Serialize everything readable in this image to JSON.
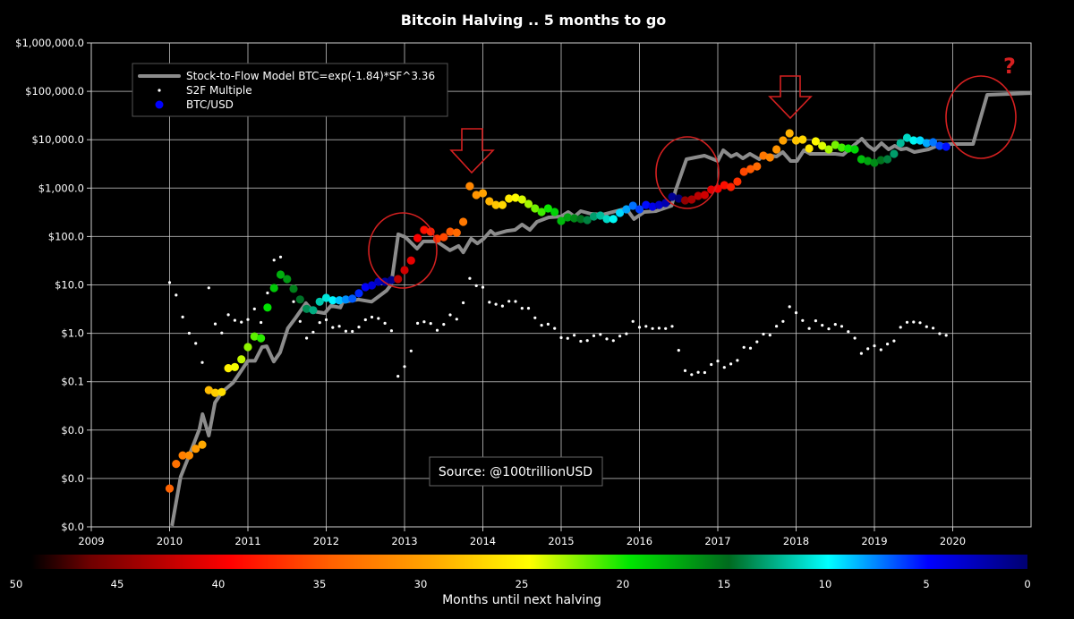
{
  "chart_data": {
    "type": "scatter",
    "title": "Bitcoin Halving .. 5 months to go",
    "x_ticks": [
      "2009",
      "2010",
      "2011",
      "2012",
      "2013",
      "2014",
      "2015",
      "2016",
      "2017",
      "2018",
      "2019",
      "2020"
    ],
    "xlim": [
      2009,
      2021
    ],
    "y_scale": "log",
    "ylim": [
      0.0001,
      1000000
    ],
    "y_ticks": [
      {
        "value": 1000000,
        "label": "$1,000,000.0"
      },
      {
        "value": 100000,
        "label": "$100,000.0"
      },
      {
        "value": 10000,
        "label": "$10,000.0"
      },
      {
        "value": 1000,
        "label": "$1,000.0"
      },
      {
        "value": 100,
        "label": "$100.0"
      },
      {
        "value": 10,
        "label": "$10.0"
      },
      {
        "value": 1,
        "label": "$1.0"
      },
      {
        "value": 0.1,
        "label": "$0.1"
      },
      {
        "value": 0.01,
        "label": "$0.0"
      },
      {
        "value": 0.001,
        "label": "$0.0"
      },
      {
        "value": 0.0001,
        "label": "$0.0"
      }
    ],
    "grid": true,
    "legend": {
      "placement": "top-left",
      "entries": [
        {
          "label": "Stock-to-Flow Model BTC=exp(-1.84)*SF^3.36",
          "color": "#8c8c8c",
          "marker": "line"
        },
        {
          "label": "S2F Multiple",
          "color": "#ffffff",
          "marker": "small-dot"
        },
        {
          "label": "BTC/USD",
          "color": "#0000ff",
          "marker": "dot"
        }
      ]
    },
    "halvings": [
      2012.9,
      2016.52,
      2020.36
    ],
    "series": [
      {
        "name": "Stock-to-Flow Model BTC=exp(-1.84)*SF^3.36",
        "type": "line",
        "color": "#8c8c8c",
        "points": [
          [
            2010.03,
            0.000105
          ],
          [
            2010.14,
            0.00108
          ],
          [
            2010.27,
            0.0036
          ],
          [
            2010.38,
            0.0104
          ],
          [
            2010.42,
            0.0213
          ],
          [
            2010.5,
            0.0077
          ],
          [
            2010.58,
            0.037
          ],
          [
            2010.67,
            0.061
          ],
          [
            2010.81,
            0.095
          ],
          [
            2010.91,
            0.164
          ],
          [
            2011.0,
            0.27
          ],
          [
            2011.09,
            0.27
          ],
          [
            2011.18,
            0.52
          ],
          [
            2011.24,
            0.54
          ],
          [
            2011.33,
            0.26
          ],
          [
            2011.41,
            0.4
          ],
          [
            2011.51,
            1.27
          ],
          [
            2011.61,
            2.1
          ],
          [
            2011.74,
            4.2
          ],
          [
            2011.83,
            2.85
          ],
          [
            2011.98,
            2.6
          ],
          [
            2012.06,
            3.7
          ],
          [
            2012.18,
            3.4
          ],
          [
            2012.21,
            4.4
          ],
          [
            2012.41,
            5.0
          ],
          [
            2012.58,
            4.5
          ],
          [
            2012.77,
            7.6
          ],
          [
            2012.83,
            10.2
          ],
          [
            2012.92,
            111
          ],
          [
            2013.01,
            97
          ],
          [
            2013.16,
            56
          ],
          [
            2013.24,
            79
          ],
          [
            2013.35,
            79
          ],
          [
            2013.41,
            79
          ],
          [
            2013.58,
            52
          ],
          [
            2013.69,
            64
          ],
          [
            2013.75,
            47
          ],
          [
            2013.85,
            90
          ],
          [
            2013.93,
            72
          ],
          [
            2014.01,
            90
          ],
          [
            2014.1,
            131
          ],
          [
            2014.15,
            111
          ],
          [
            2014.31,
            131
          ],
          [
            2014.41,
            137
          ],
          [
            2014.5,
            177
          ],
          [
            2014.6,
            137
          ],
          [
            2014.69,
            201
          ],
          [
            2014.84,
            249
          ],
          [
            2015.0,
            259
          ],
          [
            2015.09,
            321
          ],
          [
            2015.17,
            259
          ],
          [
            2015.25,
            335
          ],
          [
            2015.38,
            295
          ],
          [
            2015.53,
            284
          ],
          [
            2015.7,
            335
          ],
          [
            2015.83,
            380
          ],
          [
            2015.93,
            229
          ],
          [
            2016.06,
            321
          ],
          [
            2016.21,
            335
          ],
          [
            2016.41,
            432
          ],
          [
            2016.46,
            891
          ],
          [
            2016.6,
            3950
          ],
          [
            2016.83,
            4690
          ],
          [
            2017.0,
            3630
          ],
          [
            2017.07,
            6050
          ],
          [
            2017.17,
            4500
          ],
          [
            2017.24,
            5100
          ],
          [
            2017.32,
            4130
          ],
          [
            2017.41,
            5100
          ],
          [
            2017.53,
            3950
          ],
          [
            2017.58,
            4890
          ],
          [
            2017.75,
            4500
          ],
          [
            2017.83,
            5560
          ],
          [
            2017.93,
            3630
          ],
          [
            2018.01,
            3630
          ],
          [
            2018.1,
            6050
          ],
          [
            2018.18,
            5100
          ],
          [
            2018.35,
            5100
          ],
          [
            2018.5,
            5100
          ],
          [
            2018.6,
            4890
          ],
          [
            2018.73,
            7480
          ],
          [
            2018.84,
            10500
          ],
          [
            2018.92,
            7480
          ],
          [
            2019.0,
            6050
          ],
          [
            2019.09,
            8510
          ],
          [
            2019.18,
            6310
          ],
          [
            2019.26,
            7480
          ],
          [
            2019.34,
            6310
          ],
          [
            2019.41,
            6590
          ],
          [
            2019.51,
            5560
          ],
          [
            2019.69,
            6310
          ],
          [
            2019.8,
            7480
          ],
          [
            2019.98,
            8150
          ],
          [
            2020.26,
            8150
          ],
          [
            2020.44,
            84700
          ],
          [
            2021.01,
            92300
          ]
        ]
      },
      {
        "name": "BTC/USD",
        "type": "scatter",
        "color_by": "Months until next halving",
        "points": [
          [
            "2010-01",
            0.00062
          ],
          [
            "2010-02",
            0.002
          ],
          [
            "2010-03",
            0.003
          ],
          [
            "2010-04",
            0.003
          ],
          [
            "2010-05",
            0.0041
          ],
          [
            "2010-06",
            0.005
          ],
          [
            "2010-07",
            0.067
          ],
          [
            "2010-08",
            0.059
          ],
          [
            "2010-09",
            0.061
          ],
          [
            "2010-10",
            0.19
          ],
          [
            "2010-11",
            0.2
          ],
          [
            "2010-12",
            0.29
          ],
          [
            "2011-01",
            0.52
          ],
          [
            "2011-02",
            0.86
          ],
          [
            "2011-03",
            0.79
          ],
          [
            "2011-04",
            3.4
          ],
          [
            "2011-05",
            8.6
          ],
          [
            "2011-06",
            16.3
          ],
          [
            "2011-07",
            13.2
          ],
          [
            "2011-08",
            8.3
          ],
          [
            "2011-09",
            5.0
          ],
          [
            "2011-10",
            3.2
          ],
          [
            "2011-11",
            3.0
          ],
          [
            "2011-12",
            4.5
          ],
          [
            "2012-01",
            5.4
          ],
          [
            "2012-02",
            4.8
          ],
          [
            "2012-03",
            4.8
          ],
          [
            "2012-04",
            5.0
          ],
          [
            "2012-05",
            5.2
          ],
          [
            "2012-06",
            6.7
          ],
          [
            "2012-07",
            9.0
          ],
          [
            "2012-08",
            9.8
          ],
          [
            "2012-09",
            11.6
          ],
          [
            "2012-10",
            11.6
          ],
          [
            "2012-11",
            12.6
          ],
          [
            "2012-12",
            13.2
          ],
          [
            "2013-01",
            20.2
          ],
          [
            "2013-02",
            32
          ],
          [
            "2013-03",
            93
          ],
          [
            "2013-04",
            137
          ],
          [
            "2013-05",
            126
          ],
          [
            "2013-06",
            90
          ],
          [
            "2013-07",
            97
          ],
          [
            "2013-08",
            126
          ],
          [
            "2013-09",
            120
          ],
          [
            "2013-10",
            201
          ],
          [
            "2013-11",
            1100
          ],
          [
            "2013-12",
            720
          ],
          [
            "2014-01",
            785
          ],
          [
            "2014-02",
            535
          ],
          [
            "2014-03",
            450
          ],
          [
            "2014-04",
            450
          ],
          [
            "2014-05",
            608
          ],
          [
            "2014-06",
            634
          ],
          [
            "2014-07",
            582
          ],
          [
            "2014-08",
            471
          ],
          [
            "2014-09",
            380
          ],
          [
            "2014-10",
            321
          ],
          [
            "2014-11",
            380
          ],
          [
            "2014-12",
            321
          ],
          [
            "2015-01",
            210
          ],
          [
            "2015-02",
            249
          ],
          [
            "2015-03",
            238
          ],
          [
            "2015-04",
            229
          ],
          [
            "2015-05",
            219
          ],
          [
            "2015-06",
            259
          ],
          [
            "2015-07",
            271
          ],
          [
            "2015-08",
            229
          ],
          [
            "2015-09",
            229
          ],
          [
            "2015-10",
            308
          ],
          [
            "2015-11",
            365
          ],
          [
            "2015-12",
            432
          ],
          [
            "2016-01",
            365
          ],
          [
            "2016-02",
            450
          ],
          [
            "2016-03",
            414
          ],
          [
            "2016-04",
            450
          ],
          [
            "2016-05",
            491
          ],
          [
            "2016-06",
            662
          ],
          [
            "2016-07",
            608
          ],
          [
            "2016-08",
            558
          ],
          [
            "2016-09",
            582
          ],
          [
            "2016-10",
            690
          ],
          [
            "2016-11",
            720
          ],
          [
            "2016-12",
            931
          ],
          [
            "2017-01",
            970
          ],
          [
            "2017-02",
            1150
          ],
          [
            "2017-03",
            1057
          ],
          [
            "2017-04",
            1365
          ],
          [
            "2017-05",
            2180
          ],
          [
            "2017-06",
            2480
          ],
          [
            "2017-07",
            2810
          ],
          [
            "2017-08",
            4690
          ],
          [
            "2017-09",
            4300
          ],
          [
            "2017-10",
            6310
          ],
          [
            "2017-11",
            9660
          ],
          [
            "2017-12",
            13600
          ],
          [
            "2018-01",
            9660
          ],
          [
            "2018-02",
            10100
          ],
          [
            "2018-03",
            6590
          ],
          [
            "2018-04",
            9270
          ],
          [
            "2018-05",
            7480
          ],
          [
            "2018-06",
            6310
          ],
          [
            "2018-07",
            7820
          ],
          [
            "2018-08",
            6870
          ],
          [
            "2018-09",
            6590
          ],
          [
            "2018-10",
            6310
          ],
          [
            "2018-11",
            3950
          ],
          [
            "2018-12",
            3630
          ],
          [
            "2019-01",
            3330
          ],
          [
            "2019-02",
            3790
          ],
          [
            "2019-03",
            3950
          ],
          [
            "2019-04",
            5100
          ],
          [
            "2019-05",
            8510
          ],
          [
            "2019-06",
            11000
          ],
          [
            "2019-07",
            9660
          ],
          [
            "2019-08",
            9660
          ],
          [
            "2019-09",
            8510
          ],
          [
            "2019-10",
            8870
          ],
          [
            "2019-11",
            7480
          ],
          [
            "2019-12",
            7180
          ]
        ]
      },
      {
        "name": "S2F Multiple",
        "type": "scatter",
        "color": "#ffffff"
      }
    ],
    "colorbar": {
      "label": "Months until next halving",
      "ticks": [
        "50",
        "45",
        "40",
        "35",
        "30",
        "25",
        "20",
        "15",
        "10",
        "5",
        "0"
      ],
      "range": [
        50,
        0
      ],
      "stops": [
        {
          "value": 50,
          "color": "#000000"
        },
        {
          "value": 47,
          "color": "#700000"
        },
        {
          "value": 40,
          "color": "#ff0000"
        },
        {
          "value": 35,
          "color": "#ff6000"
        },
        {
          "value": 30,
          "color": "#ffa500"
        },
        {
          "value": 25,
          "color": "#ffff00"
        },
        {
          "value": 20,
          "color": "#00e600"
        },
        {
          "value": 15,
          "color": "#006a1e"
        },
        {
          "value": 10,
          "color": "#00ffff"
        },
        {
          "value": 5,
          "color": "#0000ff"
        },
        {
          "value": 0,
          "color": "#000070"
        }
      ]
    },
    "annotations": {
      "source": "Source: @100trillionUSD",
      "question_mark": "?",
      "highlight_color": "#d42020"
    }
  }
}
